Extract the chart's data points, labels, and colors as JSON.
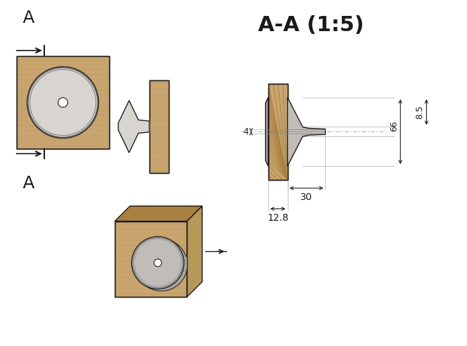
{
  "title": "A-A (1:5)",
  "bg_color": "#ffffff",
  "wood_color": "#C8A46E",
  "wood_light": "#D4B07A",
  "wood_dark": "#A88040",
  "metal_light": "#D8D5D0",
  "metal_mid": "#C0BDB8",
  "metal_dark": "#A8A5A0",
  "line_color": "#1a1a1a",
  "dim_color": "#1a1a1a",
  "dims": {
    "d66": "66",
    "d8_5": "8.5",
    "d4": "4",
    "d30": "30",
    "d12_8": "12.8"
  },
  "layout": {
    "fig_w": 6.75,
    "fig_h": 5.0,
    "dpi": 100
  }
}
